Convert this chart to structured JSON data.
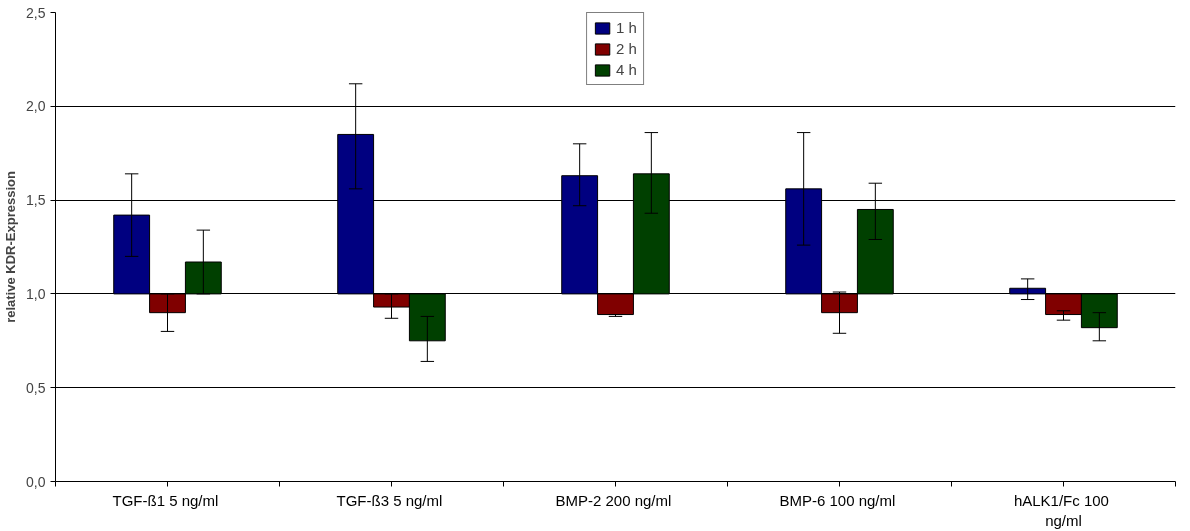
{
  "chart_data": {
    "type": "bar",
    "ylabel": "relative KDR-Expression",
    "categories": [
      "TGF-ß1  5 ng/ml",
      "TGF-ß3  5 ng/ml",
      "BMP-2  200 ng/ml",
      "BMP-6  100 ng/ml",
      "hALK1/Fc  100 ng/ml"
    ],
    "series": [
      {
        "name": "1 h",
        "color": "#000080",
        "base": [
          1,
          1,
          1,
          1,
          1
        ],
        "values": [
          0.42,
          0.85,
          0.63,
          0.56,
          0.03
        ],
        "errors": [
          [
            1.2,
            1.64
          ],
          [
            1.56,
            2.12
          ],
          [
            1.47,
            1.8
          ],
          [
            1.26,
            1.86
          ],
          [
            0.97,
            1.08
          ]
        ]
      },
      {
        "name": "2 h",
        "color": "#800000",
        "base": [
          1,
          1,
          1,
          1,
          1
        ],
        "values": [
          -0.1,
          -0.07,
          -0.11,
          -0.1,
          -0.11
        ],
        "errors": [
          [
            0.8,
            1.0
          ],
          [
            0.87,
            1.0
          ],
          [
            0.88,
            0.89
          ],
          [
            0.79,
            1.01
          ],
          [
            0.86,
            0.91
          ]
        ]
      },
      {
        "name": "4 h",
        "color": "#004000",
        "base": [
          1,
          1,
          1,
          1,
          1
        ],
        "values": [
          0.17,
          -0.25,
          0.64,
          0.45,
          -0.18
        ],
        "errors": [
          [
            1.0,
            1.34
          ],
          [
            0.64,
            0.88
          ],
          [
            1.43,
            1.86
          ],
          [
            1.29,
            1.59
          ],
          [
            0.75,
            0.9
          ]
        ]
      }
    ],
    "ylim": [
      0,
      2.5
    ],
    "yticks": [
      {
        "value": 0,
        "label": "0,0"
      },
      {
        "value": 0.5,
        "label": "0,5"
      },
      {
        "value": 1,
        "label": "1,0"
      },
      {
        "value": 1.5,
        "label": "1,5"
      },
      {
        "value": 2,
        "label": "2,0"
      },
      {
        "value": 2.5,
        "label": "2,5"
      }
    ],
    "grid": "y",
    "legend": "top"
  }
}
